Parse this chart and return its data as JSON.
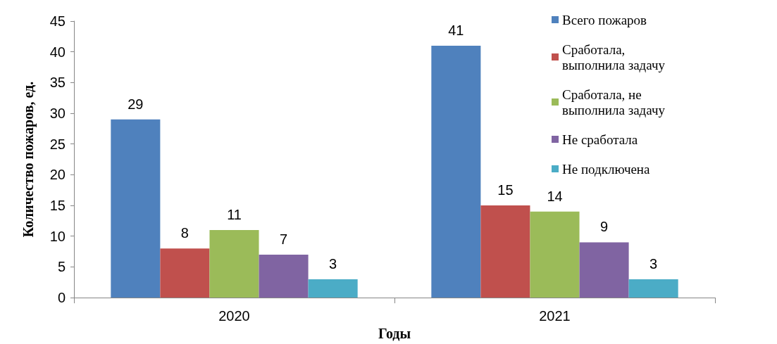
{
  "chart_data": {
    "type": "bar",
    "xlabel": "Годы",
    "ylabel": "Количество пожаров, ед.",
    "categories": [
      "2020",
      "2021"
    ],
    "series": [
      {
        "name": "Всего пожаров",
        "color": "#4f81bd",
        "values": [
          29,
          41
        ]
      },
      {
        "name": "Сработала, выполнила задачу",
        "color": "#c0504d",
        "values": [
          8,
          15
        ]
      },
      {
        "name": "Сработала, не выполнила задачу",
        "color": "#9bbb59",
        "values": [
          11,
          14
        ]
      },
      {
        "name": "Не сработала",
        "color": "#8064a2",
        "values": [
          7,
          9
        ]
      },
      {
        "name": "Не подключена",
        "color": "#4bacc6",
        "values": [
          3,
          3
        ]
      }
    ],
    "ylim": [
      0,
      45
    ],
    "yticks": [
      0,
      5,
      10,
      15,
      20,
      25,
      30,
      35,
      40,
      45
    ],
    "grid": false,
    "legend": "top right",
    "data_labels": true
  }
}
